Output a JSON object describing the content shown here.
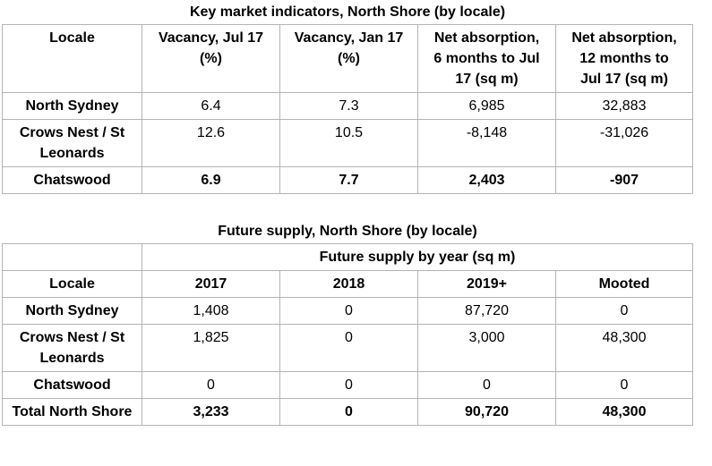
{
  "table1": {
    "title": "Key market indicators, North Shore (by locale)",
    "header": [
      "Locale",
      "Vacancy, Jul 17 (%)",
      "Vacancy, Jan 17 (%)",
      "Net absorption, 6 months to Jul 17 (sq m)",
      "Net absorption, 12 months to Jul 17 (sq m)"
    ],
    "rows": [
      [
        "North Sydney",
        "6.4",
        "7.3",
        "6,985",
        "32,883"
      ],
      [
        "Crows Nest / St Leonards",
        "12.6",
        "10.5",
        "-8,148",
        "-31,026"
      ],
      [
        "Chatswood",
        "6.9",
        "7.7",
        "2,403",
        "-907"
      ]
    ]
  },
  "table2": {
    "title": "Future supply, North Shore (by locale)",
    "subtitle": "Future supply by year (sq m)",
    "header": [
      "Locale",
      "2017",
      "2018",
      "2019+",
      "Mooted"
    ],
    "rows": [
      [
        "North Sydney",
        "1,408",
        "0",
        "87,720",
        "0"
      ],
      [
        "Crows Nest / St Leonards",
        "1,825",
        "0",
        "3,000",
        "48,300"
      ],
      [
        "Chatswood",
        "0",
        "0",
        "0",
        "0"
      ],
      [
        "Total North Shore",
        "3,233",
        "0",
        "90,720",
        "48,300"
      ]
    ]
  }
}
